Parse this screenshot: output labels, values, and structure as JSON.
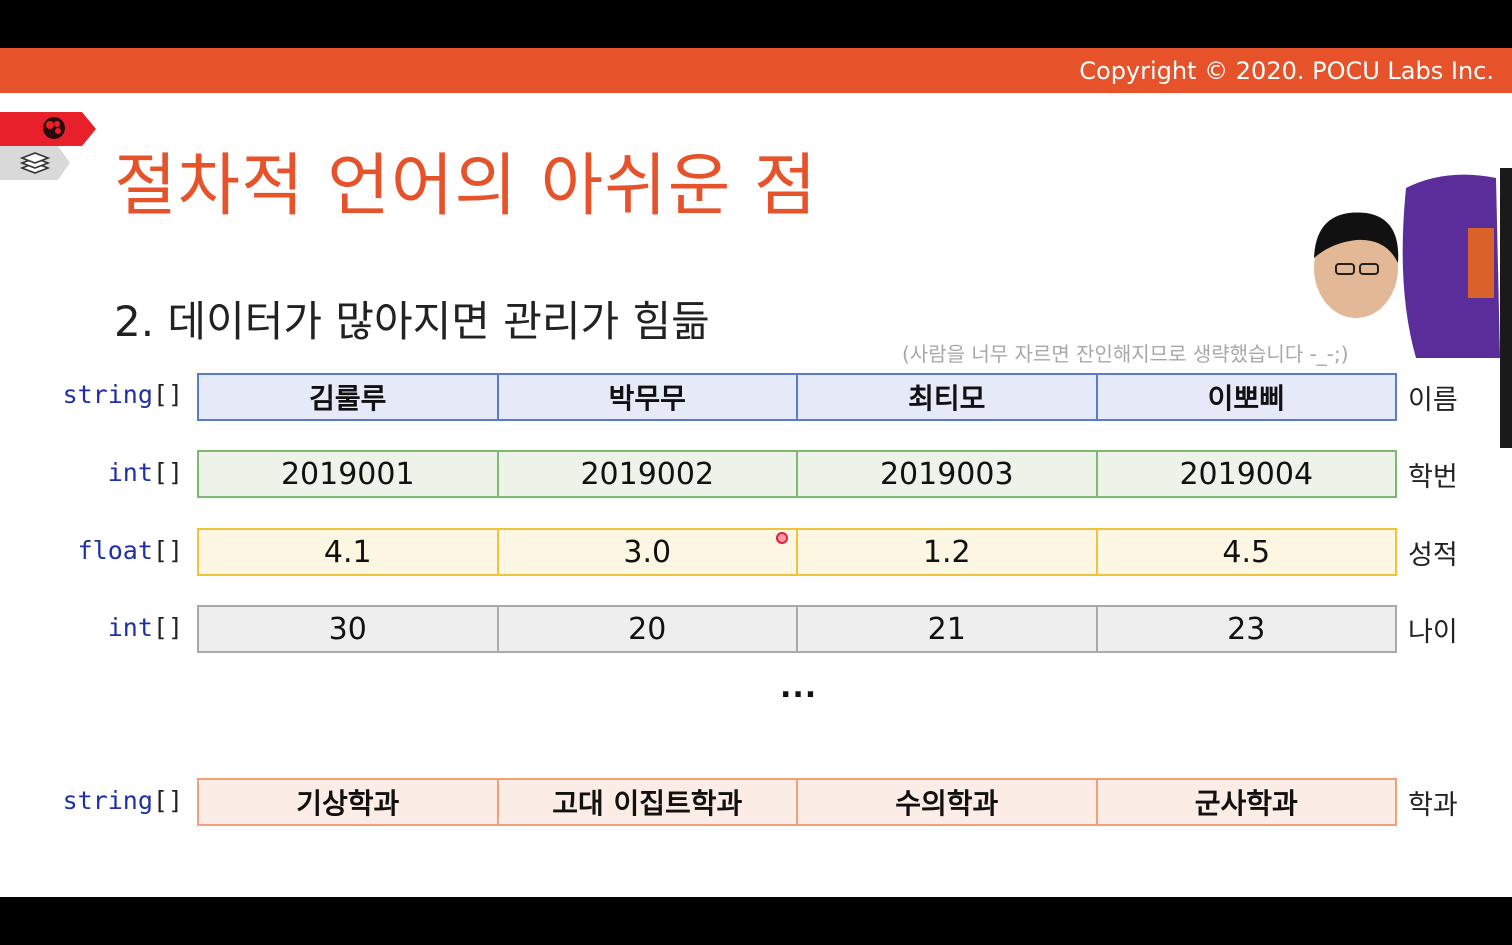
{
  "header": {
    "copyright": "Copyright © 2020. POCU Labs Inc."
  },
  "slide": {
    "title": "절차적 언어의 아쉬운 점",
    "subtitle": "2.  데이터가 많아지면 관리가 힘듦",
    "note": "(사람을 너무 자르면 잔인해지므로 생략했습니다 -_-;)",
    "ellipsis": "...",
    "colors": {
      "accent": "#e6532b",
      "row1_bg": "#e6eaf8",
      "row1_border": "#5a7bc9",
      "row2_bg": "#eef3ea",
      "row2_border": "#7fb872",
      "row3_bg": "#fdf6e3",
      "row3_border": "#f0c43a",
      "row4_bg": "#eeeeee",
      "row4_border": "#a9a9a9",
      "row5_bg": "#fbece6",
      "row5_border": "#f0a07a"
    },
    "rows": [
      {
        "type_kw": "string",
        "type_br": "[]",
        "cells": [
          "김룰루",
          "박무무",
          "최티모",
          "이뽀삐"
        ],
        "label": "이름"
      },
      {
        "type_kw": "int",
        "type_br": "[]",
        "cells": [
          "2019001",
          "2019002",
          "2019003",
          "2019004"
        ],
        "label": "학번"
      },
      {
        "type_kw": "float",
        "type_br": "[]",
        "cells": [
          "4.1",
          "3.0",
          "1.2",
          "4.5"
        ],
        "label": "성적"
      },
      {
        "type_kw": "int",
        "type_br": "[]",
        "cells": [
          "30",
          "20",
          "21",
          "23"
        ],
        "label": "나이"
      },
      {
        "type_kw": "string",
        "type_br": "[]",
        "cells": [
          "기상학과",
          "고대 이집트학과",
          "수의학과",
          "군사학과"
        ],
        "label": "학과"
      }
    ]
  },
  "icons": {
    "badge_top": "brain-icon",
    "badge_bottom": "stacked-layers-icon"
  }
}
